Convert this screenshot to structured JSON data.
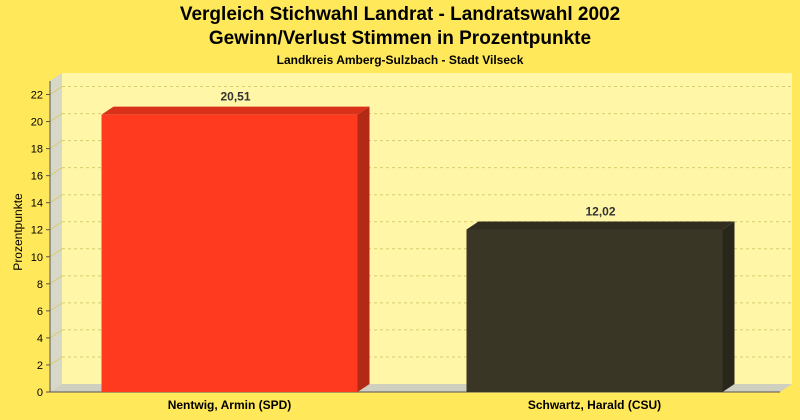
{
  "title": "Vergleich Stichwahl Landrat - Landratswahl 2002",
  "subtitle": "Gewinn/Verlust Stimmen in Prozentpunkte",
  "caption": "Landkreis Amberg-Sulzbach - Stadt Vilseck",
  "colors": {
    "background": "#FFE85A",
    "plot_back": "#FFF6A8",
    "plot_front": "#FFF080",
    "grid": "#D8CC70"
  },
  "chart_data": {
    "type": "bar",
    "title": "Vergleich Stichwahl Landrat - Landratswahl 2002",
    "subtitle": "Gewinn/Verlust Stimmen in Prozentpunkte",
    "caption": "Landkreis Amberg-Sulzbach - Stadt Vilseck",
    "xlabel": "",
    "ylabel": "Prozentpunkte",
    "categories": [
      "Nentwig, Armin (SPD)",
      "Schwartz, Harald (CSU)"
    ],
    "values": [
      20.51,
      12.02
    ],
    "value_labels": [
      "20,51",
      "12,02"
    ],
    "bar_colors": [
      "#FF3A1E",
      "#3A3626"
    ],
    "ylim": [
      0,
      23
    ],
    "yticks": [
      0,
      2,
      4,
      6,
      8,
      10,
      12,
      14,
      16,
      18,
      20,
      22
    ],
    "grid": true,
    "legend": "none"
  }
}
